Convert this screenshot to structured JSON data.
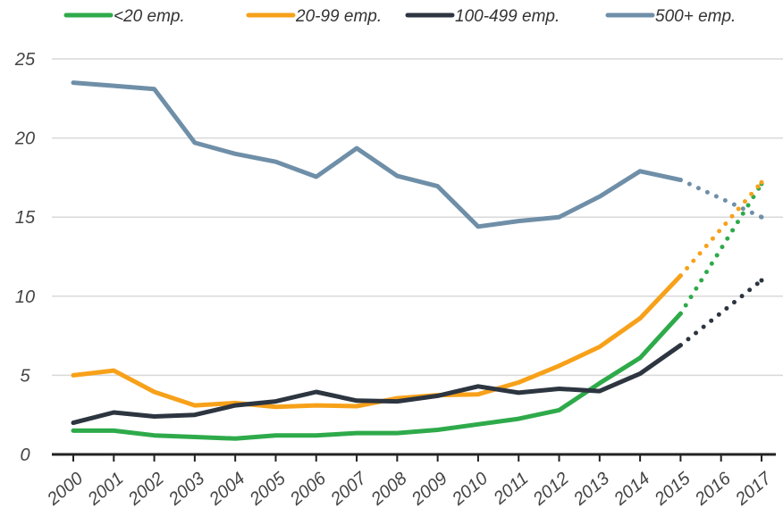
{
  "chart_data": {
    "type": "line",
    "title": "",
    "xlabel": "",
    "ylabel": "",
    "x": [
      "2000",
      "2001",
      "2002",
      "2003",
      "2004",
      "2005",
      "2006",
      "2007",
      "2008",
      "2009",
      "2010",
      "2011",
      "2012",
      "2013",
      "2014",
      "2015",
      "2016",
      "2017"
    ],
    "ylim": [
      0,
      25
    ],
    "yticks": [
      0,
      5,
      10,
      15,
      20,
      25
    ],
    "grid": true,
    "legend_position": "top",
    "projected_from": "2015",
    "series": [
      {
        "name": "<20 emp.",
        "color": "#2eaa4a",
        "values": [
          1.5,
          1.5,
          1.2,
          1.1,
          1.0,
          1.2,
          1.2,
          1.35,
          1.35,
          1.55,
          1.9,
          2.25,
          2.8,
          4.5,
          6.1,
          8.9,
          null,
          17.1
        ]
      },
      {
        "name": "20-99 emp.",
        "color": "#f7a11a",
        "values": [
          5.0,
          5.3,
          3.95,
          3.1,
          3.25,
          3.0,
          3.1,
          3.05,
          3.55,
          3.75,
          3.8,
          4.55,
          5.6,
          6.8,
          8.6,
          11.3,
          null,
          17.2
        ]
      },
      {
        "name": "100-499 emp.",
        "color": "#2c3540",
        "values": [
          2.0,
          2.65,
          2.4,
          2.5,
          3.1,
          3.35,
          3.95,
          3.4,
          3.35,
          3.7,
          4.3,
          3.9,
          4.15,
          4.0,
          5.1,
          6.9,
          null,
          11.0
        ]
      },
      {
        "name": "500+ emp.",
        "color": "#6f8fa8",
        "values": [
          23.5,
          23.3,
          23.1,
          19.7,
          19.0,
          18.5,
          17.55,
          19.35,
          17.6,
          16.95,
          14.4,
          14.75,
          15.0,
          16.3,
          17.9,
          17.35,
          null,
          15.0
        ]
      }
    ]
  }
}
